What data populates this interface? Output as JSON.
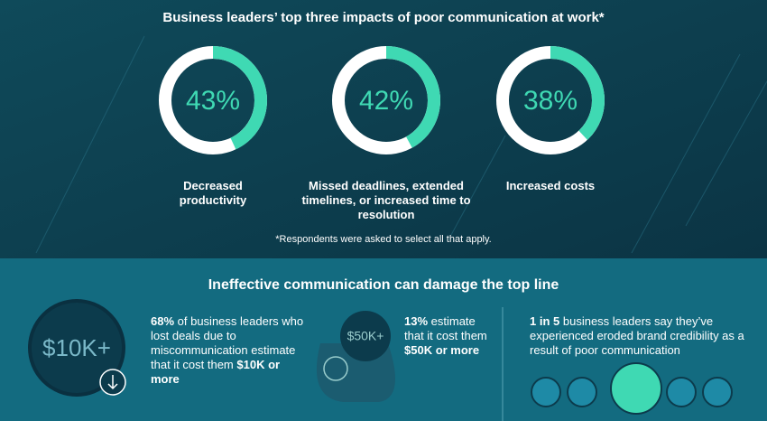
{
  "chart_data": {
    "type": "donut",
    "title": "Business leaders’ top three impacts of poor communication at work*",
    "categories": [
      "Decreased productivity",
      "Missed deadlines, extended timelines, or increased time to resolution",
      "Increased costs"
    ],
    "values": [
      43,
      42,
      38
    ],
    "value_labels": [
      "43%",
      "42%",
      "38%"
    ],
    "color": "#3fd9b3",
    "track_color": "#ffffff",
    "footnote": "*Respondents were asked to select all that apply."
  },
  "section": {
    "title": "Ineffective communication can damage the top line",
    "stats": [
      {
        "icon_label": "$10K+",
        "parts": [
          "68%",
          " of business leaders who lost deals due to miscommunication estimate that it cost them ",
          "$10K or more"
        ]
      },
      {
        "icon_label": "$50K+",
        "parts": [
          "13%",
          " estimate that it cost them ",
          "$50K or more"
        ]
      },
      {
        "parts": [
          "1 in 5",
          " business leaders say they’ve experienced eroded brand credibility as a result of poor communication"
        ]
      }
    ]
  }
}
